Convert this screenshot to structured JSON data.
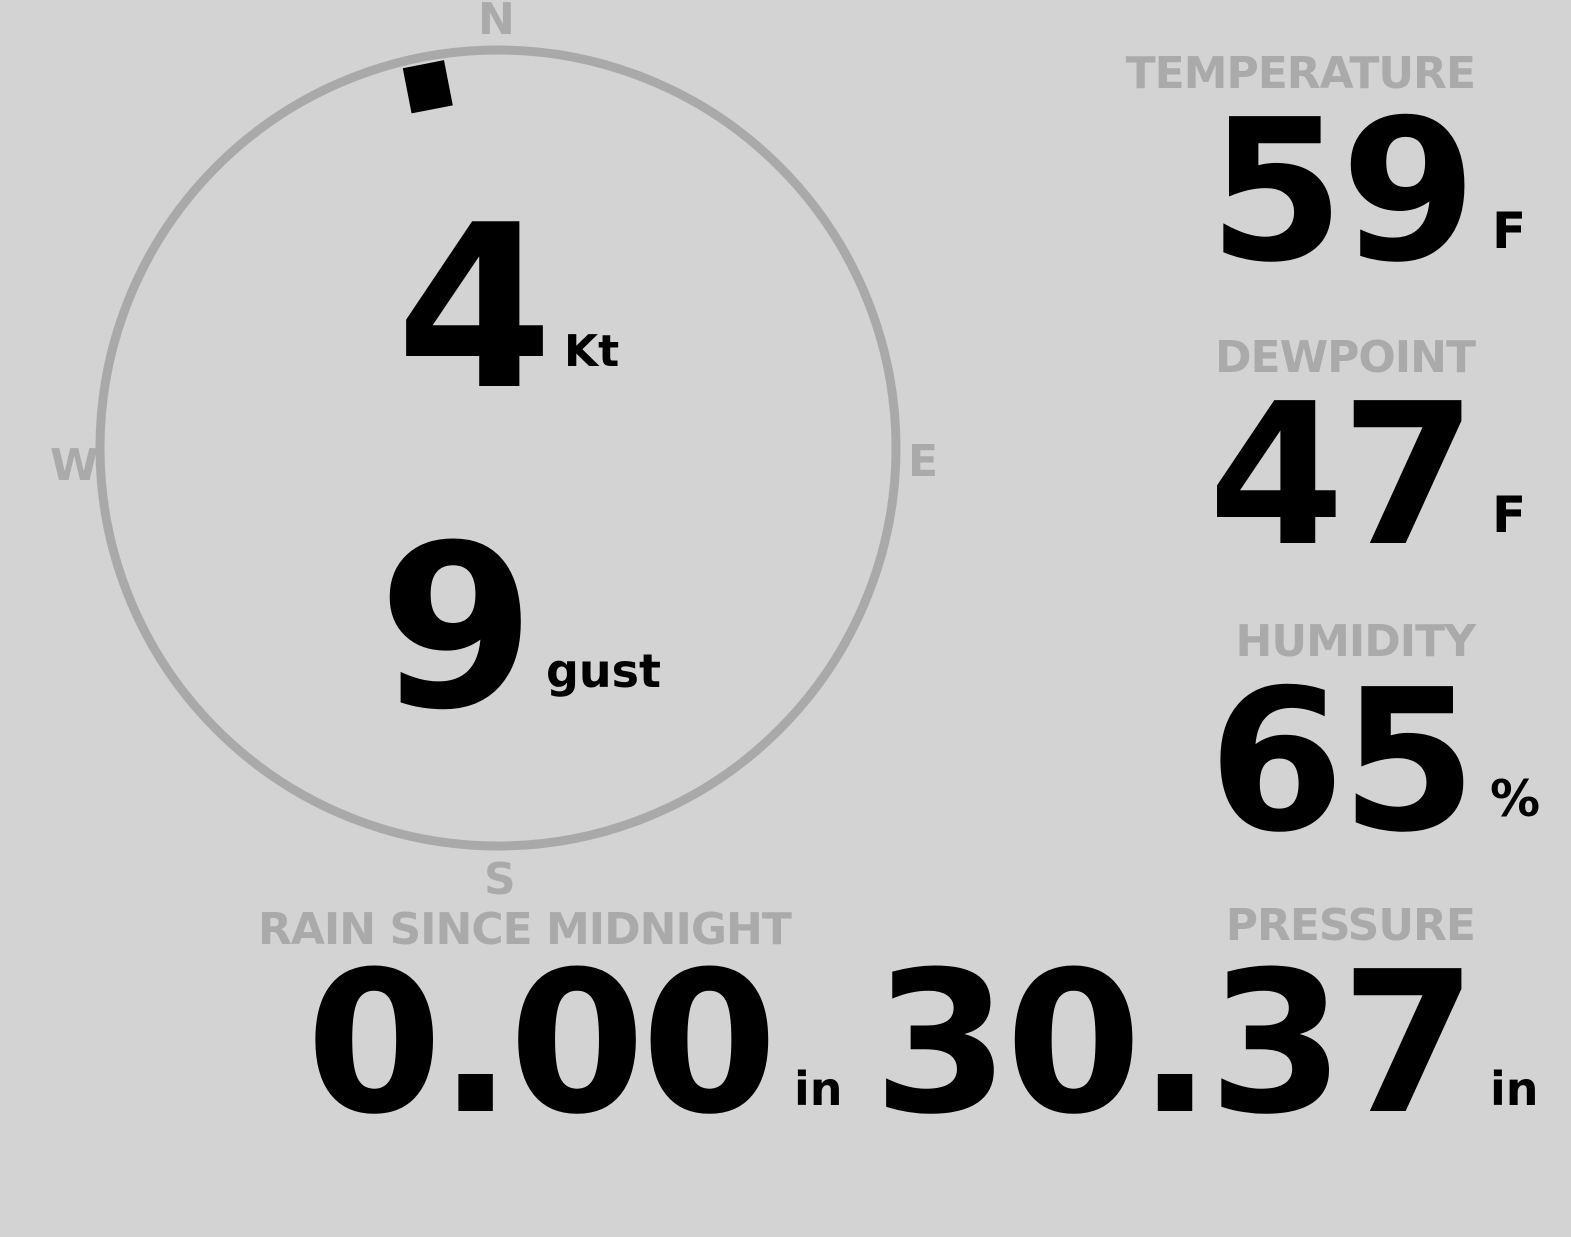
{
  "wind": {
    "speed": "4",
    "speed_unit": "Kt",
    "gust": "9",
    "gust_label": "gust",
    "direction_deg": 349,
    "cardinals": {
      "n": "N",
      "e": "E",
      "s": "S",
      "w": "W"
    },
    "ring_color": "#a9a9a9",
    "marker_color": "#000000"
  },
  "temperature": {
    "label": "TEMPERATURE",
    "value": "59",
    "unit": "F"
  },
  "dewpoint": {
    "label": "DEWPOINT",
    "value": "47",
    "unit": "F"
  },
  "humidity": {
    "label": "HUMIDITY",
    "value": "65",
    "unit": "%"
  },
  "rain": {
    "label": "RAIN SINCE MIDNIGHT",
    "value": "0.00",
    "unit": "in"
  },
  "pressure": {
    "label": "PRESSURE",
    "value": "30.37",
    "unit": "in"
  }
}
